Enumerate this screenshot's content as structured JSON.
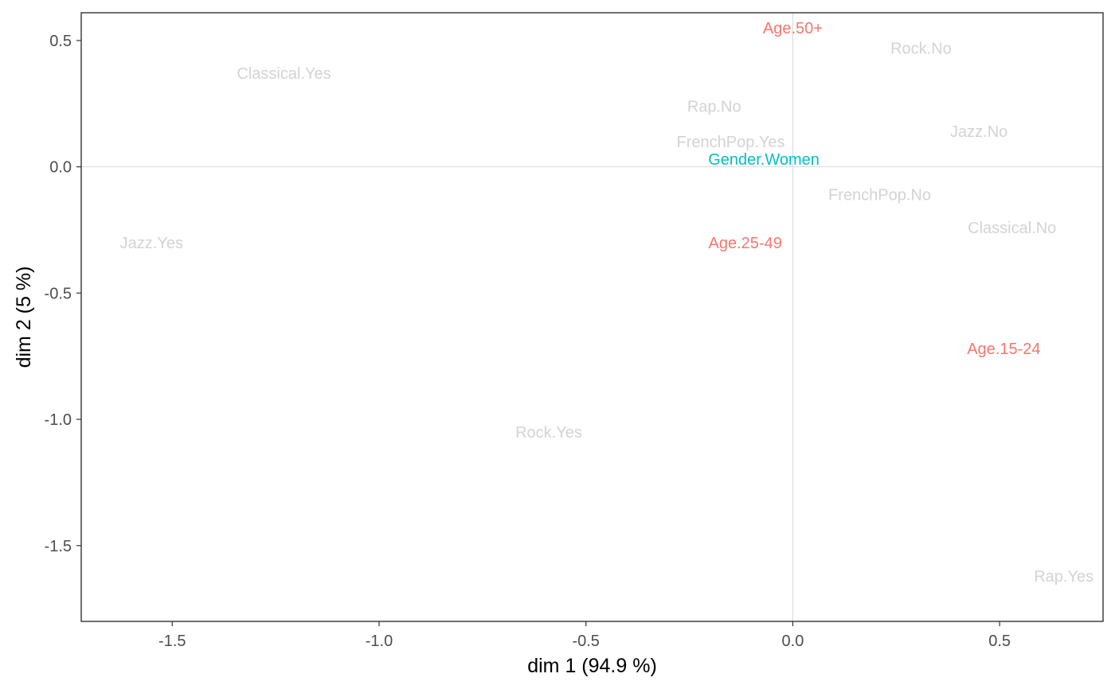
{
  "chart_data": {
    "type": "scatter",
    "xlabel": "dim 1 (94.9 %)",
    "ylabel": "dim 2 (5 %)",
    "xlim": [
      -1.72,
      0.75
    ],
    "ylim": [
      -1.8,
      0.61
    ],
    "xticks": [
      -1.5,
      -1.0,
      -0.5,
      0.0,
      0.5
    ],
    "xtick_labels": [
      "-1.5",
      "-1.0",
      "-0.5",
      "0.0",
      "0.5"
    ],
    "yticks": [
      0.5,
      0.0,
      -0.5,
      -1.0,
      -1.5
    ],
    "ytick_labels": [
      "0.5",
      "0.0",
      "-0.5",
      "-1.0",
      "-1.5"
    ],
    "reference_lines": {
      "x": 0,
      "y": 0
    },
    "grid": false,
    "points": [
      {
        "label": "Age.50+",
        "x": 0.0,
        "y": 0.55,
        "color": "#F8766D"
      },
      {
        "label": "Rock.No",
        "x": 0.31,
        "y": 0.47,
        "color": "#D3D3D3"
      },
      {
        "label": "Classical.Yes",
        "x": -1.23,
        "y": 0.37,
        "color": "#D3D3D3"
      },
      {
        "label": "Rap.No",
        "x": -0.19,
        "y": 0.24,
        "color": "#D3D3D3"
      },
      {
        "label": "Jazz.No",
        "x": 0.45,
        "y": 0.14,
        "color": "#D3D3D3"
      },
      {
        "label": "FrenchPop.Yes",
        "x": -0.15,
        "y": 0.1,
        "color": "#D3D3D3"
      },
      {
        "label": "Gender.Women",
        "x": -0.07,
        "y": 0.03,
        "color": "#00BFC4"
      },
      {
        "label": "FrenchPop.No",
        "x": 0.21,
        "y": -0.11,
        "color": "#D3D3D3"
      },
      {
        "label": "Classical.No",
        "x": 0.53,
        "y": -0.24,
        "color": "#D3D3D3"
      },
      {
        "label": "Jazz.Yes",
        "x": -1.55,
        "y": -0.3,
        "color": "#D3D3D3"
      },
      {
        "label": "Age.25-49",
        "x": -0.115,
        "y": -0.3,
        "color": "#F8766D"
      },
      {
        "label": "Age.15-24",
        "x": 0.51,
        "y": -0.72,
        "color": "#F8766D"
      },
      {
        "label": "Rock.Yes",
        "x": -0.59,
        "y": -1.05,
        "color": "#D3D3D3"
      },
      {
        "label": "Rap.Yes",
        "x": 0.655,
        "y": -1.62,
        "color": "#D3D3D3"
      }
    ]
  }
}
